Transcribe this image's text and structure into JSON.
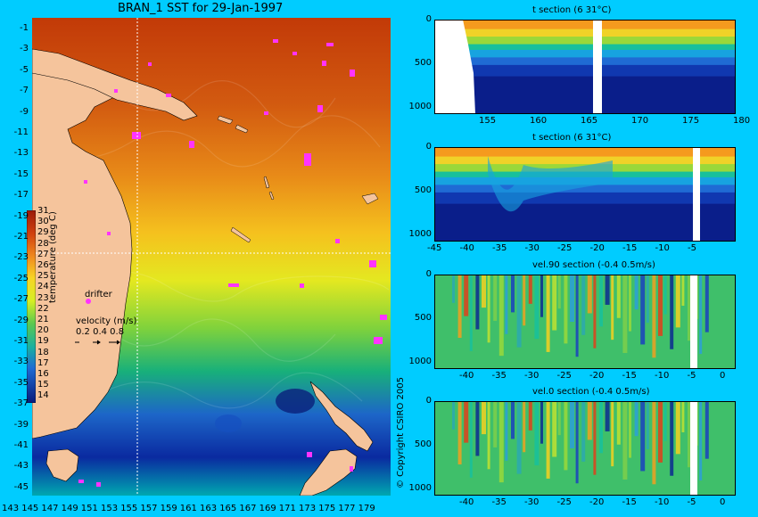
{
  "title": "BRAN_1 SST for 29-Jan-1997",
  "copyright": "© Copyright CSIRO 2005",
  "colorbar": {
    "label": "temperature (deg C)",
    "ticks": [
      "31",
      "30",
      "29",
      "28",
      "27",
      "26",
      "25",
      "24",
      "23",
      "22",
      "21",
      "20",
      "19",
      "18",
      "17",
      "16",
      "15",
      "14"
    ]
  },
  "legend": {
    "drifter_label": "drifter",
    "velocity_label": "velocity (m/s)",
    "velocity_values": "0.2 0.4 0.8"
  },
  "map": {
    "x_ticks": [
      "143",
      "145",
      "147",
      "149",
      "151",
      "153",
      "155",
      "157",
      "159",
      "161",
      "163",
      "165",
      "167",
      "169",
      "171",
      "173",
      "175",
      "177",
      "179"
    ],
    "y_ticks": [
      "-1",
      "-3",
      "-5",
      "-7",
      "-9",
      "-11",
      "-13",
      "-15",
      "-17",
      "-19",
      "-21",
      "-23",
      "-25",
      "-27",
      "-29",
      "-31",
      "-33",
      "-35",
      "-37",
      "-39",
      "-41",
      "-43",
      "-45"
    ],
    "colors": {
      "ocean_warm": "#c44a10",
      "ocean_cool": "#0a2aa0",
      "land": "#f5c49c",
      "drifter": "#ff33ff"
    }
  },
  "panels": [
    {
      "id": "t-section-lat",
      "title": "t section (6       31°C)",
      "x_ticks": [
        "155",
        "160",
        "165",
        "170",
        "175",
        "180"
      ],
      "y_ticks": [
        "0",
        "500",
        "1000"
      ]
    },
    {
      "id": "t-section-lon",
      "title": "t section (6       31°C)",
      "x_ticks": [
        "-45",
        "-40",
        "-35",
        "-30",
        "-25",
        "-20",
        "-15",
        "-10",
        "-5"
      ],
      "y_ticks": [
        "0",
        "500",
        "1000"
      ]
    },
    {
      "id": "vel90-section",
      "title": "vel.90 section (-0.4       0.5m/s)",
      "x_ticks": [
        "-40",
        "-35",
        "-30",
        "-25",
        "-20",
        "-15",
        "-10",
        "-5",
        "0"
      ],
      "y_ticks": [
        "0",
        "500",
        "1000"
      ]
    },
    {
      "id": "vel0-section",
      "title": "vel.0 section (-0.4       0.5m/s)",
      "x_ticks": [
        "-40",
        "-35",
        "-30",
        "-25",
        "-20",
        "-15",
        "-10",
        "-5",
        "0"
      ],
      "y_ticks": [
        "0",
        "500",
        "1000"
      ]
    }
  ],
  "chart_data": [
    {
      "type": "heatmap",
      "title": "BRAN_1 SST for 29-Jan-1997",
      "xlim": [
        143,
        180
      ],
      "ylim": [
        -45,
        0
      ],
      "colorbar_range": [
        14,
        31
      ],
      "colorbar_label": "temperature (deg C)"
    },
    {
      "type": "heatmap",
      "title": "t section (6       31°C)",
      "xlim": [
        150,
        180
      ],
      "ylim": [
        1000,
        0
      ]
    },
    {
      "type": "heatmap",
      "title": "t section (6       31°C)",
      "xlim": [
        -45,
        0
      ],
      "ylim": [
        1000,
        0
      ]
    },
    {
      "type": "heatmap",
      "title": "vel.90 section (-0.4       0.5m/s)",
      "xlim": [
        -45,
        0
      ],
      "ylim": [
        1000,
        0
      ]
    },
    {
      "type": "heatmap",
      "title": "vel.0 section (-0.4       0.5m/s)",
      "xlim": [
        -45,
        0
      ],
      "ylim": [
        1000,
        0
      ]
    }
  ]
}
